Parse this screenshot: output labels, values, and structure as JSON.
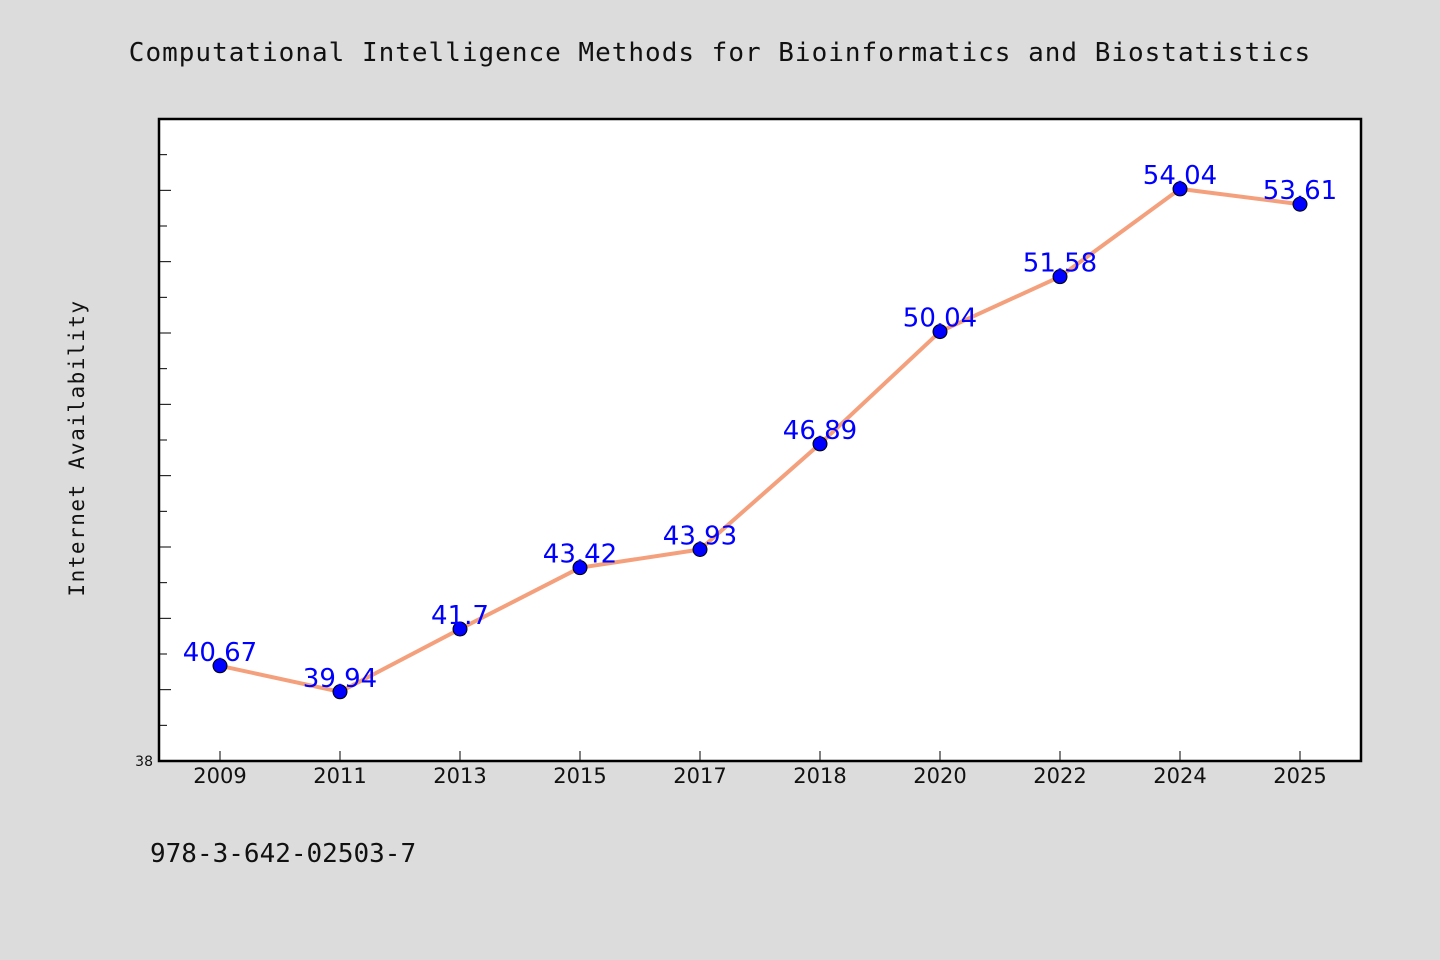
{
  "chart_data": {
    "type": "line",
    "title": "Computational Intelligence Methods for Bioinformatics and Biostatistics",
    "xlabel": "",
    "ylabel": "Internet Availability",
    "categories": [
      "2009",
      "2011",
      "2013",
      "2015",
      "2017",
      "2018",
      "2020",
      "2022",
      "2024",
      "2025"
    ],
    "series": [
      {
        "values": [
          40.67,
          39.94,
          41.7,
          43.42,
          43.93,
          46.89,
          50.04,
          51.58,
          54.04,
          53.61
        ]
      }
    ],
    "data_labels": [
      "40.67",
      "39.94",
      "41.7",
      "43.42",
      "43.93",
      "46.89",
      "50.04",
      "51.58",
      "54.04",
      "53.61"
    ],
    "ylim": [
      38,
      56
    ],
    "y_tick_labels": [
      "38"
    ],
    "grid": false,
    "legend": "none",
    "line_color": "#f4a07c",
    "marker_color": "#0000ff",
    "label_color": "#0000ff"
  },
  "footer": {
    "isbn": "978-3-642-02503-7"
  }
}
